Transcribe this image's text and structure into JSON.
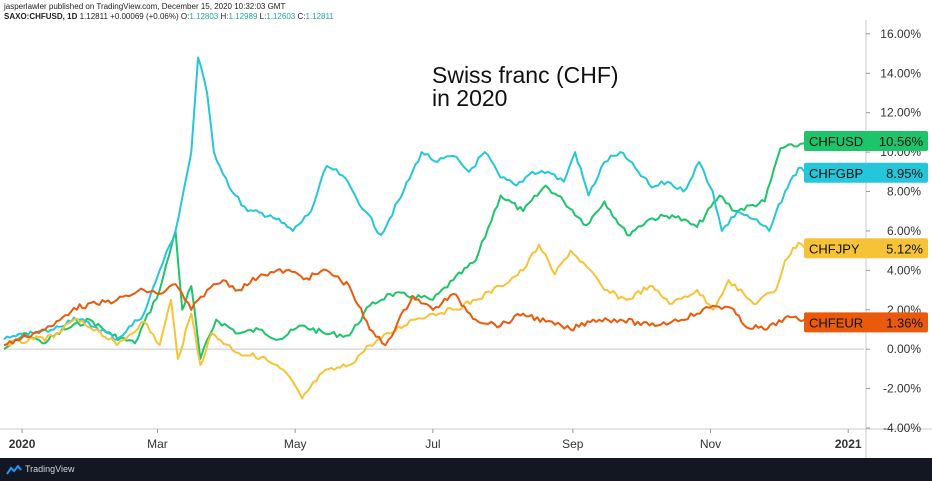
{
  "header": {
    "line1": "jasperlawler published on TradingView.com, December 15, 2020 10:32:03 GMT",
    "symbol": "SAXO:CHFUSD, 1D",
    "last": "1.12811",
    "change": "+0.00069 (+0.06%)",
    "o_label": "O:",
    "o": "1.12803",
    "h_label": "H:",
    "h": "1.12989",
    "l_label": "L:",
    "l": "1.12603",
    "c_label": "C:",
    "c": "1.12811"
  },
  "annotation": {
    "line1": "Swiss franc (CHF)",
    "line2": "in 2020"
  },
  "footer": {
    "brand": "TradingView",
    "logo_icon": "tradingview-logo-icon"
  },
  "chart_data": {
    "type": "line",
    "x_unit": "date",
    "x_range": [
      "2019-12-24",
      "2021-01-08"
    ],
    "ylim": [
      -4.0,
      16.5
    ],
    "y_ticks": [
      "16.00%",
      "14.00%",
      "12.00%",
      "10.00%",
      "8.00%",
      "6.00%",
      "4.00%",
      "2.00%",
      "0.00%",
      "-2.00%",
      "-4.00%"
    ],
    "y_tick_values": [
      16,
      14,
      12,
      10,
      8,
      6,
      4,
      2,
      0,
      -2,
      -4
    ],
    "x_ticks": [
      "2020",
      "Mar",
      "May",
      "Jul",
      "Sep",
      "Nov",
      "2021"
    ],
    "x_tick_dates": [
      "2020-01-01",
      "2020-03-01",
      "2020-05-01",
      "2020-07-01",
      "2020-09-01",
      "2020-11-01",
      "2021-01-01"
    ],
    "x_tick_bold": [
      true,
      false,
      false,
      false,
      false,
      false,
      true
    ],
    "grid": false,
    "zero_line": true,
    "series": [
      {
        "name": "CHFUSD",
        "label_value": "10.56%",
        "color": "#1ec46a",
        "points": [
          [
            "2019-12-24",
            0.0
          ],
          [
            "2020-01-03",
            0.8
          ],
          [
            "2020-01-10",
            0.3
          ],
          [
            "2020-01-20",
            1.0
          ],
          [
            "2020-01-31",
            1.5
          ],
          [
            "2020-02-10",
            0.7
          ],
          [
            "2020-02-20",
            0.3
          ],
          [
            "2020-03-02",
            3.0
          ],
          [
            "2020-03-09",
            6.0
          ],
          [
            "2020-03-12",
            2.0
          ],
          [
            "2020-03-16",
            3.2
          ],
          [
            "2020-03-20",
            -0.5
          ],
          [
            "2020-03-27",
            1.5
          ],
          [
            "2020-04-06",
            0.8
          ],
          [
            "2020-04-15",
            1.0
          ],
          [
            "2020-04-24",
            0.5
          ],
          [
            "2020-05-04",
            1.2
          ],
          [
            "2020-05-14",
            0.8
          ],
          [
            "2020-05-25",
            0.7
          ],
          [
            "2020-06-03",
            2.2
          ],
          [
            "2020-06-12",
            2.8
          ],
          [
            "2020-06-22",
            2.7
          ],
          [
            "2020-07-01",
            2.5
          ],
          [
            "2020-07-10",
            3.5
          ],
          [
            "2020-07-20",
            4.5
          ],
          [
            "2020-07-31",
            7.8
          ],
          [
            "2020-08-10",
            7.0
          ],
          [
            "2020-08-20",
            8.3
          ],
          [
            "2020-08-28",
            7.5
          ],
          [
            "2020-09-07",
            6.3
          ],
          [
            "2020-09-15",
            7.5
          ],
          [
            "2020-09-25",
            5.8
          ],
          [
            "2020-10-05",
            6.6
          ],
          [
            "2020-10-15",
            6.8
          ],
          [
            "2020-10-26",
            6.2
          ],
          [
            "2020-11-05",
            7.8
          ],
          [
            "2020-11-12",
            7.0
          ],
          [
            "2020-11-25",
            7.5
          ],
          [
            "2020-12-02",
            10.2
          ],
          [
            "2020-12-08",
            10.3
          ],
          [
            "2020-12-15",
            10.56
          ]
        ]
      },
      {
        "name": "CHFGBP",
        "label_value": "8.95%",
        "color": "#26c6da",
        "points": [
          [
            "2019-12-24",
            0.5
          ],
          [
            "2020-01-06",
            0.8
          ],
          [
            "2020-01-15",
            1.0
          ],
          [
            "2020-01-24",
            1.6
          ],
          [
            "2020-02-03",
            1.1
          ],
          [
            "2020-02-12",
            0.5
          ],
          [
            "2020-02-24",
            1.8
          ],
          [
            "2020-03-02",
            4.0
          ],
          [
            "2020-03-09",
            6.0
          ],
          [
            "2020-03-16",
            10.0
          ],
          [
            "2020-03-19",
            14.8
          ],
          [
            "2020-03-23",
            13.0
          ],
          [
            "2020-03-26",
            10.0
          ],
          [
            "2020-04-03",
            8.0
          ],
          [
            "2020-04-10",
            7.0
          ],
          [
            "2020-04-20",
            6.8
          ],
          [
            "2020-04-30",
            6.0
          ],
          [
            "2020-05-08",
            7.0
          ],
          [
            "2020-05-15",
            9.3
          ],
          [
            "2020-05-22",
            8.8
          ],
          [
            "2020-06-01",
            7.0
          ],
          [
            "2020-06-08",
            5.8
          ],
          [
            "2020-06-18",
            8.0
          ],
          [
            "2020-06-26",
            10.0
          ],
          [
            "2020-07-03",
            9.5
          ],
          [
            "2020-07-10",
            9.8
          ],
          [
            "2020-07-17",
            9.0
          ],
          [
            "2020-07-24",
            10.0
          ],
          [
            "2020-07-31",
            8.7
          ],
          [
            "2020-08-07",
            8.3
          ],
          [
            "2020-08-14",
            9.0
          ],
          [
            "2020-08-21",
            9.0
          ],
          [
            "2020-08-28",
            8.5
          ],
          [
            "2020-09-02",
            10.0
          ],
          [
            "2020-09-08",
            7.8
          ],
          [
            "2020-09-15",
            9.5
          ],
          [
            "2020-09-22",
            10.0
          ],
          [
            "2020-09-30",
            9.0
          ],
          [
            "2020-10-06",
            8.2
          ],
          [
            "2020-10-13",
            8.5
          ],
          [
            "2020-10-20",
            8.0
          ],
          [
            "2020-10-27",
            9.5
          ],
          [
            "2020-11-02",
            8.0
          ],
          [
            "2020-11-06",
            6.0
          ],
          [
            "2020-11-13",
            7.0
          ],
          [
            "2020-11-20",
            6.6
          ],
          [
            "2020-11-27",
            6.0
          ],
          [
            "2020-12-04",
            8.0
          ],
          [
            "2020-12-10",
            9.2
          ],
          [
            "2020-12-15",
            8.95
          ]
        ]
      },
      {
        "name": "CHFJPY",
        "label_value": "5.12%",
        "color": "#f6c338",
        "points": [
          [
            "2019-12-24",
            0.2
          ],
          [
            "2020-01-06",
            0.5
          ],
          [
            "2020-01-15",
            0.6
          ],
          [
            "2020-01-24",
            1.5
          ],
          [
            "2020-02-03",
            1.0
          ],
          [
            "2020-02-12",
            0.2
          ],
          [
            "2020-02-24",
            1.4
          ],
          [
            "2020-03-02",
            0.2
          ],
          [
            "2020-03-07",
            2.5
          ],
          [
            "2020-03-10",
            -0.5
          ],
          [
            "2020-03-16",
            1.8
          ],
          [
            "2020-03-20",
            -0.8
          ],
          [
            "2020-03-25",
            0.8
          ],
          [
            "2020-04-06",
            -0.2
          ],
          [
            "2020-04-16",
            -0.4
          ],
          [
            "2020-04-27",
            -1.2
          ],
          [
            "2020-05-04",
            -2.5
          ],
          [
            "2020-05-13",
            -1.2
          ],
          [
            "2020-05-25",
            -0.8
          ],
          [
            "2020-06-03",
            0.2
          ],
          [
            "2020-06-12",
            0.8
          ],
          [
            "2020-06-22",
            1.5
          ],
          [
            "2020-07-01",
            1.8
          ],
          [
            "2020-07-10",
            2.0
          ],
          [
            "2020-07-20",
            2.5
          ],
          [
            "2020-07-31",
            3.2
          ],
          [
            "2020-08-10",
            4.0
          ],
          [
            "2020-08-17",
            5.3
          ],
          [
            "2020-08-24",
            3.8
          ],
          [
            "2020-08-31",
            5.0
          ],
          [
            "2020-09-07",
            4.2
          ],
          [
            "2020-09-15",
            3.0
          ],
          [
            "2020-09-25",
            2.5
          ],
          [
            "2020-10-05",
            3.2
          ],
          [
            "2020-10-15",
            2.3
          ],
          [
            "2020-10-26",
            3.0
          ],
          [
            "2020-11-02",
            2.0
          ],
          [
            "2020-11-09",
            3.5
          ],
          [
            "2020-11-20",
            2.3
          ],
          [
            "2020-11-30",
            3.0
          ],
          [
            "2020-12-04",
            4.5
          ],
          [
            "2020-12-10",
            5.4
          ],
          [
            "2020-12-15",
            5.12
          ]
        ]
      },
      {
        "name": "CHFEUR",
        "label_value": "1.36%",
        "color": "#ea5a0c",
        "points": [
          [
            "2019-12-24",
            0.2
          ],
          [
            "2020-01-06",
            0.8
          ],
          [
            "2020-01-15",
            1.2
          ],
          [
            "2020-01-24",
            2.1
          ],
          [
            "2020-02-03",
            2.3
          ],
          [
            "2020-02-12",
            2.5
          ],
          [
            "2020-02-24",
            3.0
          ],
          [
            "2020-03-02",
            2.8
          ],
          [
            "2020-03-09",
            3.3
          ],
          [
            "2020-03-16",
            2.0
          ],
          [
            "2020-03-23",
            3.0
          ],
          [
            "2020-03-30",
            3.5
          ],
          [
            "2020-04-06",
            3.0
          ],
          [
            "2020-04-16",
            3.8
          ],
          [
            "2020-04-27",
            4.0
          ],
          [
            "2020-05-06",
            3.6
          ],
          [
            "2020-05-15",
            4.0
          ],
          [
            "2020-05-25",
            3.2
          ],
          [
            "2020-06-03",
            1.0
          ],
          [
            "2020-06-10",
            0.2
          ],
          [
            "2020-06-22",
            2.7
          ],
          [
            "2020-07-01",
            2.0
          ],
          [
            "2020-07-10",
            2.8
          ],
          [
            "2020-07-20",
            1.5
          ],
          [
            "2020-07-31",
            1.2
          ],
          [
            "2020-08-10",
            1.8
          ],
          [
            "2020-08-20",
            1.4
          ],
          [
            "2020-08-31",
            1.0
          ],
          [
            "2020-09-10",
            1.5
          ],
          [
            "2020-09-22",
            1.5
          ],
          [
            "2020-10-05",
            1.2
          ],
          [
            "2020-10-15",
            1.4
          ],
          [
            "2020-10-26",
            1.8
          ],
          [
            "2020-11-02",
            2.2
          ],
          [
            "2020-11-10",
            2.1
          ],
          [
            "2020-11-16",
            1.2
          ],
          [
            "2020-11-26",
            1.0
          ],
          [
            "2020-12-04",
            1.6
          ],
          [
            "2020-12-10",
            1.5
          ],
          [
            "2020-12-15",
            1.36
          ]
        ]
      }
    ]
  }
}
